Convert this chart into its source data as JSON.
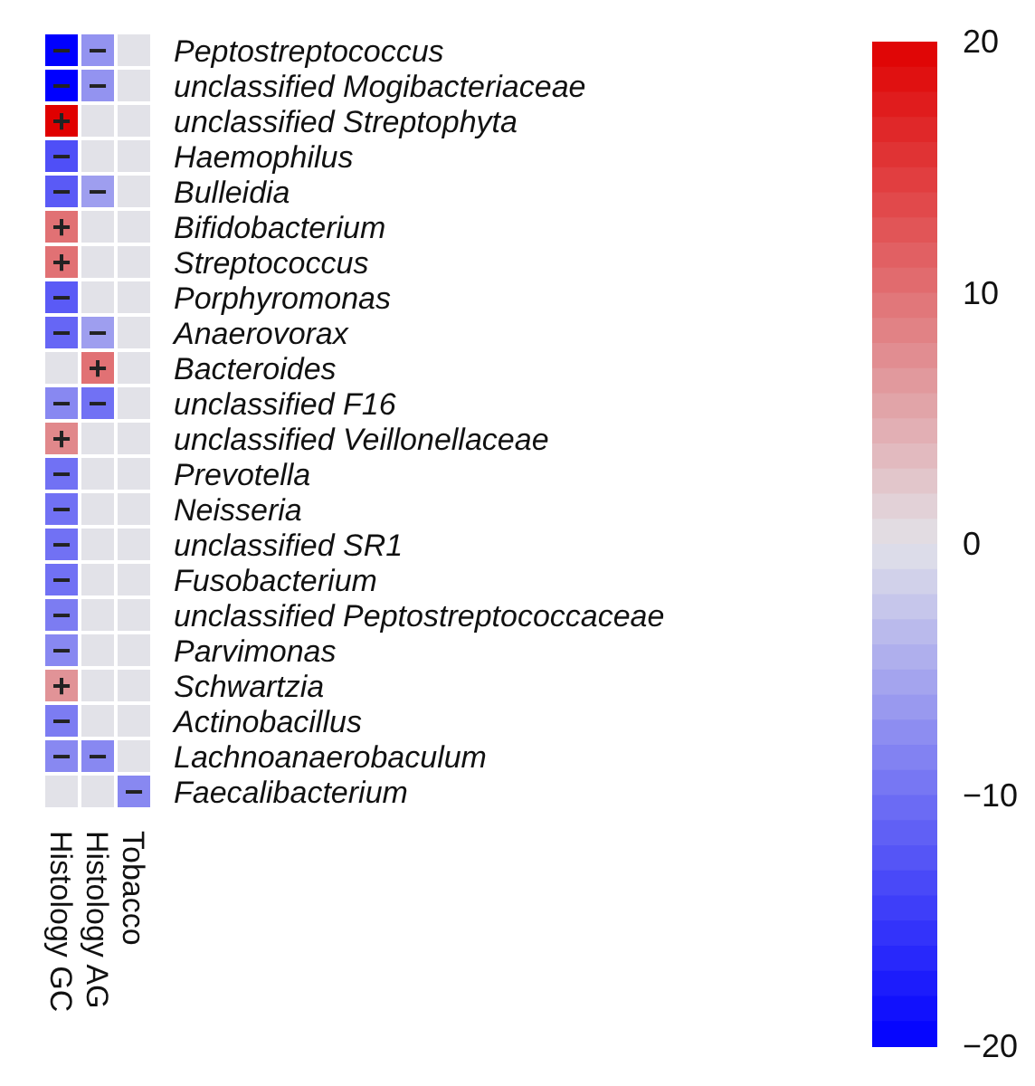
{
  "chart_data": {
    "type": "heatmap",
    "categories": [
      "Histology GC",
      "Histology AG",
      "Tobacco"
    ],
    "y_categories": [
      "Peptostreptococcus",
      "unclassified Mogibacteriaceae",
      "unclassified Streptophyta",
      "Haemophilus",
      "Bulleidia",
      "Bifidobacterium",
      "Streptococcus",
      "Porphyromonas",
      "Anaerovorax",
      "Bacteroides",
      "unclassified F16",
      "unclassified Veillonellaceae",
      "Prevotella",
      "Neisseria",
      "unclassified SR1",
      "Fusobacterium",
      "unclassified Peptostreptococcaceae",
      "Parvimonas",
      "Schwartzia",
      "Actinobacillus",
      "Lachnoanaerobaculum",
      "Faecalibacterium"
    ],
    "cells": [
      [
        -20,
        -7,
        0
      ],
      [
        -20,
        -7,
        0
      ],
      [
        20,
        0,
        0
      ],
      [
        -13,
        0,
        0
      ],
      [
        -12,
        -6,
        0
      ],
      [
        10,
        0,
        0
      ],
      [
        10,
        0,
        0
      ],
      [
        -12,
        0,
        0
      ],
      [
        -11,
        -6,
        0
      ],
      [
        0,
        10,
        0
      ],
      [
        -8,
        -10,
        0
      ],
      [
        8,
        0,
        0
      ],
      [
        -10,
        0,
        0
      ],
      [
        -10,
        0,
        0
      ],
      [
        -10,
        0,
        0
      ],
      [
        -10,
        0,
        0
      ],
      [
        -9,
        0,
        0
      ],
      [
        -8,
        0,
        0
      ],
      [
        7,
        0,
        0
      ],
      [
        -9,
        0,
        0
      ],
      [
        -8,
        -8,
        0
      ],
      [
        0,
        0,
        -8
      ]
    ],
    "cell_labels": [
      [
        "−",
        "−",
        null
      ],
      [
        "−",
        "−",
        null
      ],
      [
        "+",
        null,
        null
      ],
      [
        "−",
        null,
        null
      ],
      [
        "−",
        "−",
        null
      ],
      [
        "+",
        null,
        null
      ],
      [
        "+",
        null,
        null
      ],
      [
        "−",
        null,
        null
      ],
      [
        "−",
        "−",
        null
      ],
      [
        null,
        "+",
        null
      ],
      [
        "−",
        "−",
        null
      ],
      [
        "+",
        null,
        null
      ],
      [
        "−",
        null,
        null
      ],
      [
        "−",
        null,
        null
      ],
      [
        "−",
        null,
        null
      ],
      [
        "−",
        null,
        null
      ],
      [
        "−",
        null,
        null
      ],
      [
        "−",
        null,
        null
      ],
      [
        "+",
        null,
        null
      ],
      [
        "−",
        null,
        null
      ],
      [
        "−",
        "−",
        null
      ],
      [
        null,
        null,
        "−"
      ]
    ],
    "clim": [
      -20,
      20
    ],
    "cticks": [
      {
        "value": 20,
        "label": "20"
      },
      {
        "value": 10,
        "label": "10"
      },
      {
        "value": 0,
        "label": "0"
      },
      {
        "value": -10,
        "label": "−10"
      },
      {
        "value": -20,
        "label": "−20"
      }
    ]
  }
}
